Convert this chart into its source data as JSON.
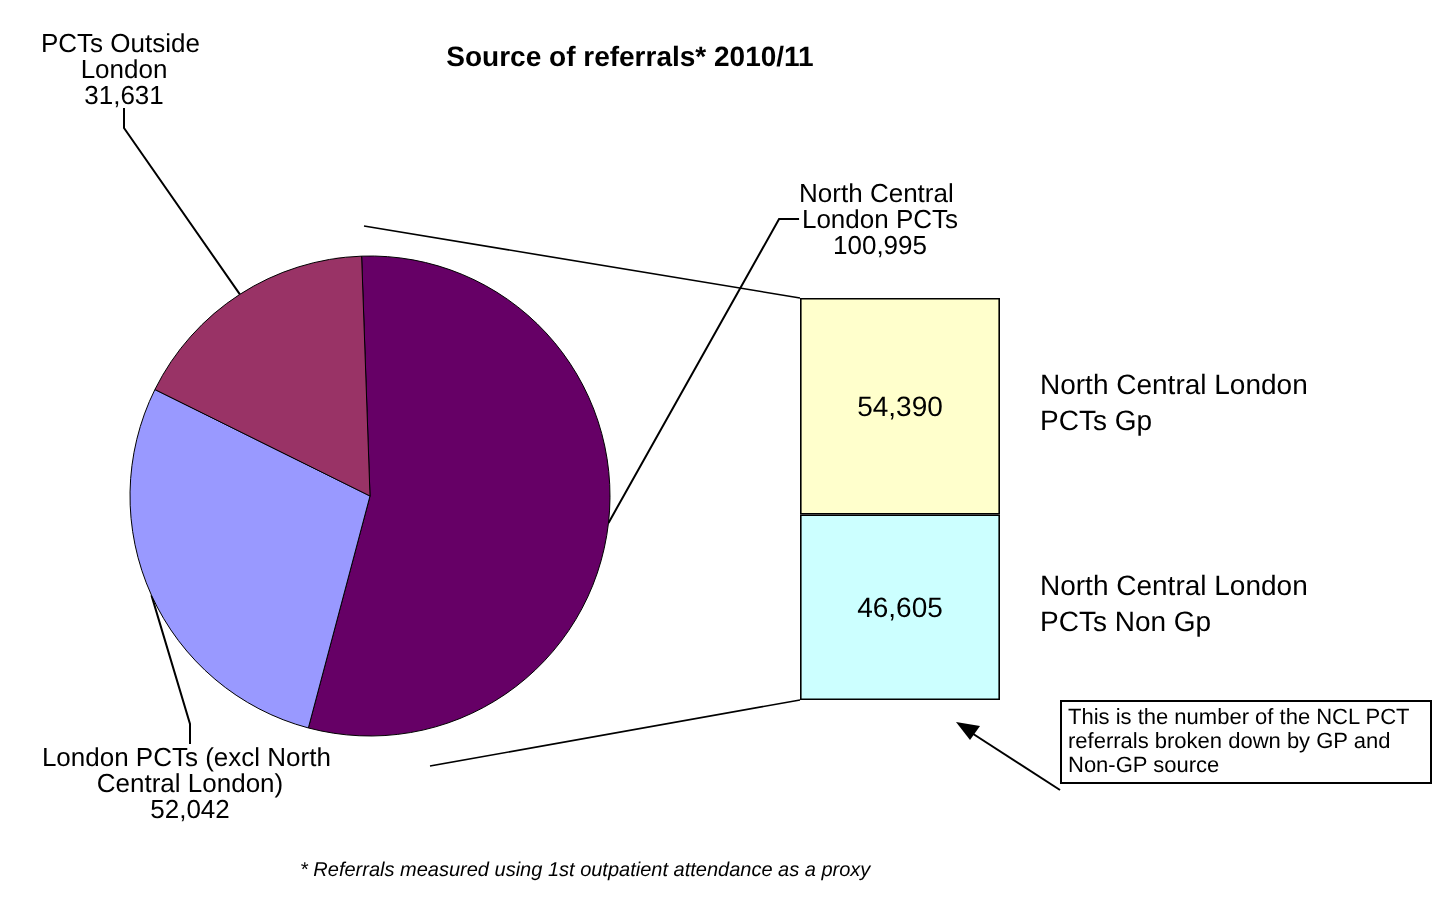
{
  "chart_data": [
    {
      "type": "pie",
      "title": "Source of referrals* 2010/11",
      "categories": [
        "North Central London PCTs",
        "London PCTs (excl North Central London)",
        "PCTs Outside London"
      ],
      "values": [
        100995,
        52042,
        31631
      ],
      "value_labels": [
        "100,995",
        "52,042",
        "31,631"
      ],
      "colors": [
        "#660066",
        "#9999ff",
        "#993366"
      ],
      "legend": false,
      "annotations": [
        "* Referrals measured using 1st outpatient attendance as a proxy"
      ]
    },
    {
      "type": "bar",
      "stacked": true,
      "categories": [
        null
      ],
      "series": [
        {
          "name": "North Central London PCTs Non Gp",
          "color": "#ccffff",
          "values": [
            46605
          ],
          "value_labels": [
            "46,605"
          ]
        },
        {
          "name": "North Central London PCTs Gp",
          "color": "#ffffcc",
          "values": [
            54390
          ],
          "value_labels": [
            "54,390"
          ]
        }
      ],
      "legend": false,
      "grid": false,
      "tick_labels": false,
      "annotations": [
        "This is the number of the NCL PCT referrals broken down by GP and Non-GP source"
      ]
    }
  ]
}
